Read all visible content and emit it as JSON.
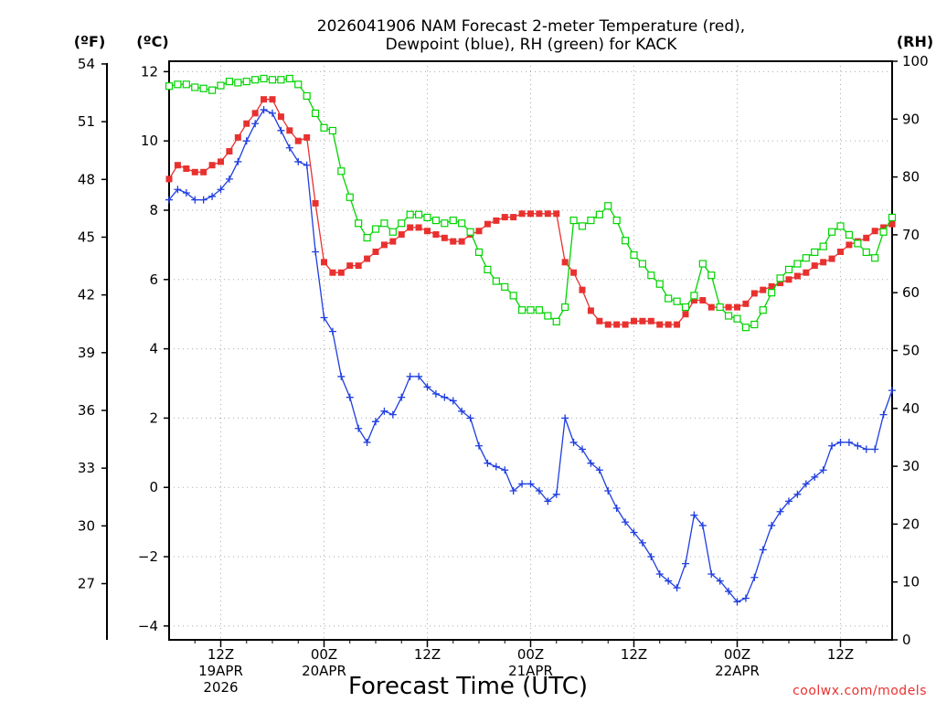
{
  "title_line1": "2026041906 NAM Forecast 2-meter Temperature (red),",
  "title_line2": "Dewpoint (blue), RH (green) for KACK",
  "units": {
    "fahrenheit": "(ºF)",
    "celsius": "(ºC)",
    "rh": "(RH)"
  },
  "xlabel": "Forecast Time (UTC)",
  "credit": "coolwx.com/models",
  "x_ticks": [
    {
      "lines": [
        "12Z",
        "19APR",
        "2026"
      ],
      "hour": 6
    },
    {
      "lines": [
        "00Z",
        "20APR"
      ],
      "hour": 18
    },
    {
      "lines": [
        "12Z"
      ],
      "hour": 30
    },
    {
      "lines": [
        "00Z",
        "21APR"
      ],
      "hour": 42
    },
    {
      "lines": [
        "12Z"
      ],
      "hour": 54
    },
    {
      "lines": [
        "00Z",
        "22APR"
      ],
      "hour": 66
    },
    {
      "lines": [
        "12Z"
      ],
      "hour": 78
    }
  ],
  "colors": {
    "temperature": "#e8312f",
    "dewpoint": "#1f3ee0",
    "rh": "#00d400",
    "grid": "#aaaaaa"
  },
  "chart_data": {
    "type": "line",
    "title": "2026041906 NAM Forecast 2-meter Temperature (red), Dewpoint (blue), RH (green) for KACK",
    "xlabel": "Forecast Time (UTC)",
    "x_unit": "forecast hour from 2026041906",
    "xlim": [
      0,
      84
    ],
    "ylim_celsius": [
      -4.4,
      12.3
    ],
    "ylim_fahrenheit": [
      24.08,
      54.14
    ],
    "ylim_rh": [
      0,
      100
    ],
    "left_ticks_celsius": [
      -4,
      -2,
      0,
      2,
      4,
      6,
      8,
      10,
      12
    ],
    "left_ticks_fahrenheit": [
      27,
      30,
      33,
      36,
      39,
      42,
      45,
      48,
      51,
      54
    ],
    "right_ticks_rh": [
      0,
      10,
      20,
      30,
      40,
      50,
      60,
      70,
      80,
      90,
      100
    ],
    "x": [
      0,
      1,
      2,
      3,
      4,
      5,
      6,
      7,
      8,
      9,
      10,
      11,
      12,
      13,
      14,
      15,
      16,
      17,
      18,
      19,
      20,
      21,
      22,
      23,
      24,
      25,
      26,
      27,
      28,
      29,
      30,
      31,
      32,
      33,
      34,
      35,
      36,
      37,
      38,
      39,
      40,
      41,
      42,
      43,
      44,
      45,
      46,
      47,
      48,
      49,
      50,
      51,
      52,
      53,
      54,
      55,
      56,
      57,
      58,
      59,
      60,
      61,
      62,
      63,
      64,
      65,
      66,
      67,
      68,
      69,
      70,
      71,
      72,
      73,
      74,
      75,
      76,
      77,
      78,
      79,
      80,
      81,
      82,
      83,
      84
    ],
    "series": [
      {
        "name": "Temperature (red)",
        "axis": "celsius",
        "marker": "filled-square",
        "values": [
          8.9,
          9.3,
          9.2,
          9.1,
          9.1,
          9.3,
          9.4,
          9.7,
          10.1,
          10.5,
          10.8,
          11.2,
          11.2,
          10.7,
          10.3,
          10.0,
          10.1,
          8.2,
          6.5,
          6.2,
          6.2,
          6.4,
          6.4,
          6.6,
          6.8,
          7.0,
          7.1,
          7.3,
          7.5,
          7.5,
          7.4,
          7.3,
          7.2,
          7.1,
          7.1,
          7.3,
          7.4,
          7.6,
          7.7,
          7.8,
          7.8,
          7.9,
          7.9,
          7.9,
          7.9,
          7.9,
          6.5,
          6.2,
          5.7,
          5.1,
          4.8,
          4.7,
          4.7,
          4.7,
          4.8,
          4.8,
          4.8,
          4.7,
          4.7,
          4.7,
          5.0,
          5.4,
          5.4,
          5.2,
          5.2,
          5.2,
          5.2,
          5.3,
          5.6,
          5.7,
          5.8,
          5.9,
          6.0,
          6.1,
          6.2,
          6.4,
          6.5,
          6.6,
          6.8,
          7.0,
          7.1,
          7.2,
          7.4,
          7.5,
          7.6
        ]
      },
      {
        "name": "Dewpoint (blue)",
        "axis": "celsius",
        "marker": "plus",
        "values": [
          8.3,
          8.6,
          8.5,
          8.3,
          8.3,
          8.4,
          8.6,
          8.9,
          9.4,
          10.0,
          10.5,
          10.9,
          10.8,
          10.3,
          9.8,
          9.4,
          9.3,
          6.8,
          4.9,
          4.5,
          3.2,
          2.6,
          1.7,
          1.3,
          1.9,
          2.2,
          2.1,
          2.6,
          3.2,
          3.2,
          2.9,
          2.7,
          2.6,
          2.5,
          2.2,
          2.0,
          1.2,
          0.7,
          0.6,
          0.5,
          -0.1,
          0.1,
          0.1,
          -0.1,
          -0.4,
          -0.2,
          2.0,
          1.3,
          1.1,
          0.7,
          0.5,
          -0.1,
          -0.6,
          -1.0,
          -1.3,
          -1.6,
          -2.0,
          -2.5,
          -2.7,
          -2.9,
          -2.2,
          -0.8,
          -1.1,
          -2.5,
          -2.7,
          -3.0,
          -3.3,
          -3.2,
          -2.6,
          -1.8,
          -1.1,
          -0.7,
          -0.4,
          -0.2,
          0.1,
          0.3,
          0.5,
          1.2,
          1.3,
          1.3,
          1.2,
          1.1,
          1.1,
          2.1,
          2.8
        ]
      },
      {
        "name": "RH (green)",
        "axis": "rh",
        "marker": "open-square",
        "values": [
          95.7,
          96.0,
          96.0,
          95.5,
          95.3,
          95.0,
          95.8,
          96.5,
          96.3,
          96.5,
          96.8,
          97.0,
          96.8,
          96.8,
          97.0,
          96.0,
          94.0,
          91.0,
          88.5,
          88.0,
          81.0,
          76.5,
          72.0,
          69.5,
          71.0,
          72.0,
          70.5,
          72.0,
          73.5,
          73.5,
          73.0,
          72.5,
          72.0,
          72.5,
          72.0,
          70.5,
          67.0,
          64.0,
          62.0,
          61.0,
          59.5,
          57.0,
          57.0,
          57.0,
          56.0,
          55.0,
          57.5,
          72.5,
          71.5,
          72.5,
          73.5,
          75.0,
          72.5,
          69.0,
          66.5,
          65.0,
          63.0,
          61.5,
          59.0,
          58.5,
          57.5,
          59.5,
          65.0,
          63.0,
          57.5,
          56.0,
          55.5,
          54.0,
          54.5,
          57.0,
          60.0,
          62.5,
          64.0,
          65.0,
          66.0,
          67.0,
          68.0,
          70.5,
          71.5,
          70.0,
          68.5,
          67.0,
          66.0,
          70.5,
          73.0
        ]
      }
    ]
  }
}
